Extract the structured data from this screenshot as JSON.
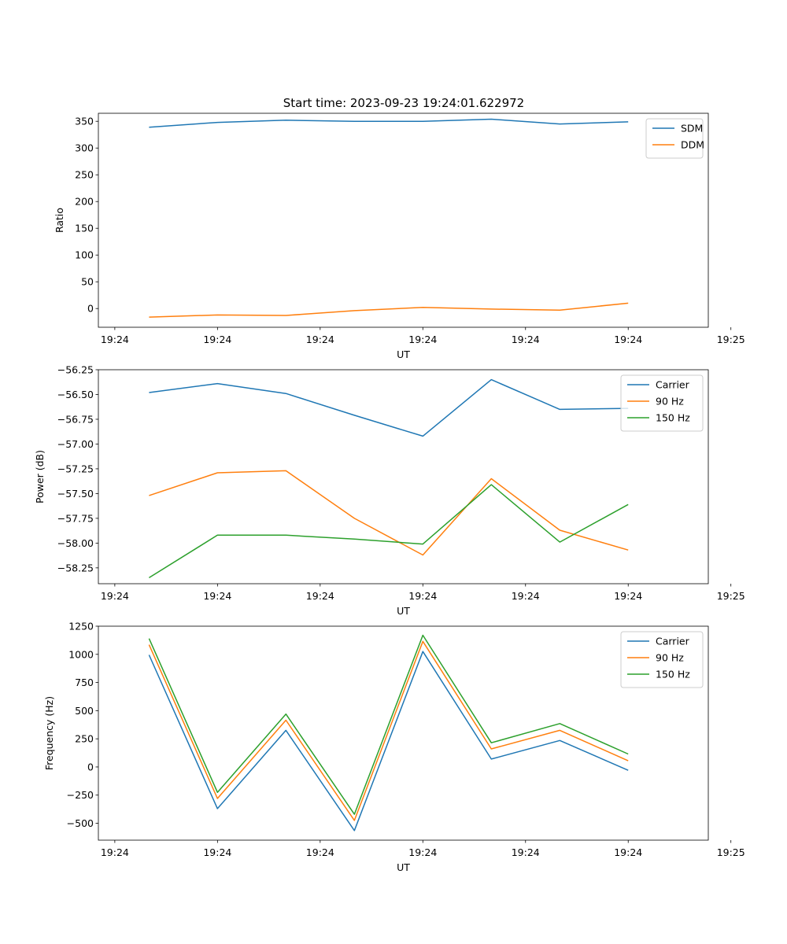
{
  "figure_title": "Start time: 2023-09-23 19:24:01.622972",
  "chart_data": [
    {
      "type": "line",
      "title": "Start time: 2023-09-23 19:24:01.622972",
      "xlabel": "UT",
      "ylabel": "Ratio",
      "x": [
        1,
        2,
        3,
        4,
        5,
        6,
        7,
        8
      ],
      "xlim": [
        0.26,
        9.17
      ],
      "ylim": [
        -35,
        365
      ],
      "yticks": [
        0,
        50,
        100,
        150,
        200,
        250,
        300,
        350
      ],
      "ytick_labels": [
        "0",
        "50",
        "100",
        "150",
        "200",
        "250",
        "300",
        "350"
      ],
      "xticks": [
        0.5,
        2,
        3.5,
        5,
        6.5,
        8,
        9.5
      ],
      "xtick_labels": [
        "19:24",
        "19:24",
        "19:24",
        "19:24",
        "19:24",
        "19:24",
        "19:25"
      ],
      "legend_position": "top-right",
      "series": [
        {
          "name": "SDM",
          "color": "#1f77b4",
          "values": [
            339,
            348,
            352,
            350,
            350,
            354,
            345,
            349
          ]
        },
        {
          "name": "DDM",
          "color": "#ff7f0e",
          "values": [
            -16,
            -12,
            -13,
            -4,
            2,
            -1,
            -3,
            10
          ]
        }
      ]
    },
    {
      "type": "line",
      "title": "",
      "xlabel": "UT",
      "ylabel": "Power (dB)",
      "x": [
        1,
        2,
        3,
        4,
        5,
        6,
        7,
        8
      ],
      "xlim": [
        0.26,
        9.17
      ],
      "ylim": [
        -58.41,
        -56.25
      ],
      "yticks": [
        -56.25,
        -56.5,
        -56.75,
        -57.0,
        -57.25,
        -57.5,
        -57.75,
        -58.0,
        -58.25
      ],
      "ytick_labels": [
        "−56.25",
        "−56.50",
        "−56.75",
        "−57.00",
        "−57.25",
        "−57.50",
        "−57.75",
        "−58.00",
        "−58.25"
      ],
      "xticks": [
        0.5,
        2,
        3.5,
        5,
        6.5,
        8,
        9.5
      ],
      "xtick_labels": [
        "19:24",
        "19:24",
        "19:24",
        "19:24",
        "19:24",
        "19:24",
        "19:25"
      ],
      "legend_position": "top-right",
      "series": [
        {
          "name": "Carrier",
          "color": "#1f77b4",
          "values": [
            -56.48,
            -56.39,
            -56.49,
            -56.71,
            -56.92,
            -56.35,
            -56.65,
            -56.64
          ]
        },
        {
          "name": "90 Hz",
          "color": "#ff7f0e",
          "values": [
            -57.52,
            -57.29,
            -57.27,
            -57.75,
            -58.12,
            -57.35,
            -57.87,
            -58.07
          ]
        },
        {
          "name": "150 Hz",
          "color": "#2ca02c",
          "values": [
            -58.35,
            -57.92,
            -57.92,
            -57.96,
            -58.01,
            -57.41,
            -57.99,
            -57.61
          ]
        }
      ]
    },
    {
      "type": "line",
      "title": "",
      "xlabel": "UT",
      "ylabel": "Frequency (Hz)",
      "x": [
        1,
        2,
        3,
        4,
        5,
        6,
        7,
        8
      ],
      "xlim": [
        0.26,
        9.17
      ],
      "ylim": [
        -650,
        1250
      ],
      "yticks": [
        -500,
        -250,
        0,
        250,
        500,
        750,
        1000,
        1250
      ],
      "ytick_labels": [
        "−500",
        "−250",
        "0",
        "250",
        "500",
        "750",
        "1000",
        "1250"
      ],
      "xticks": [
        0.5,
        2,
        3.5,
        5,
        6.5,
        8,
        9.5
      ],
      "xtick_labels": [
        "19:24",
        "19:24",
        "19:24",
        "19:24",
        "19:24",
        "19:24",
        "19:25"
      ],
      "legend_position": "top-right",
      "series": [
        {
          "name": "Carrier",
          "color": "#1f77b4",
          "values": [
            995,
            -370,
            325,
            -565,
            1025,
            70,
            235,
            -30
          ]
        },
        {
          "name": "90 Hz",
          "color": "#ff7f0e",
          "values": [
            1085,
            -280,
            415,
            -475,
            1115,
            160,
            325,
            55
          ]
        },
        {
          "name": "150 Hz",
          "color": "#2ca02c",
          "values": [
            1140,
            -225,
            470,
            -420,
            1170,
            215,
            385,
            115
          ]
        }
      ]
    }
  ]
}
